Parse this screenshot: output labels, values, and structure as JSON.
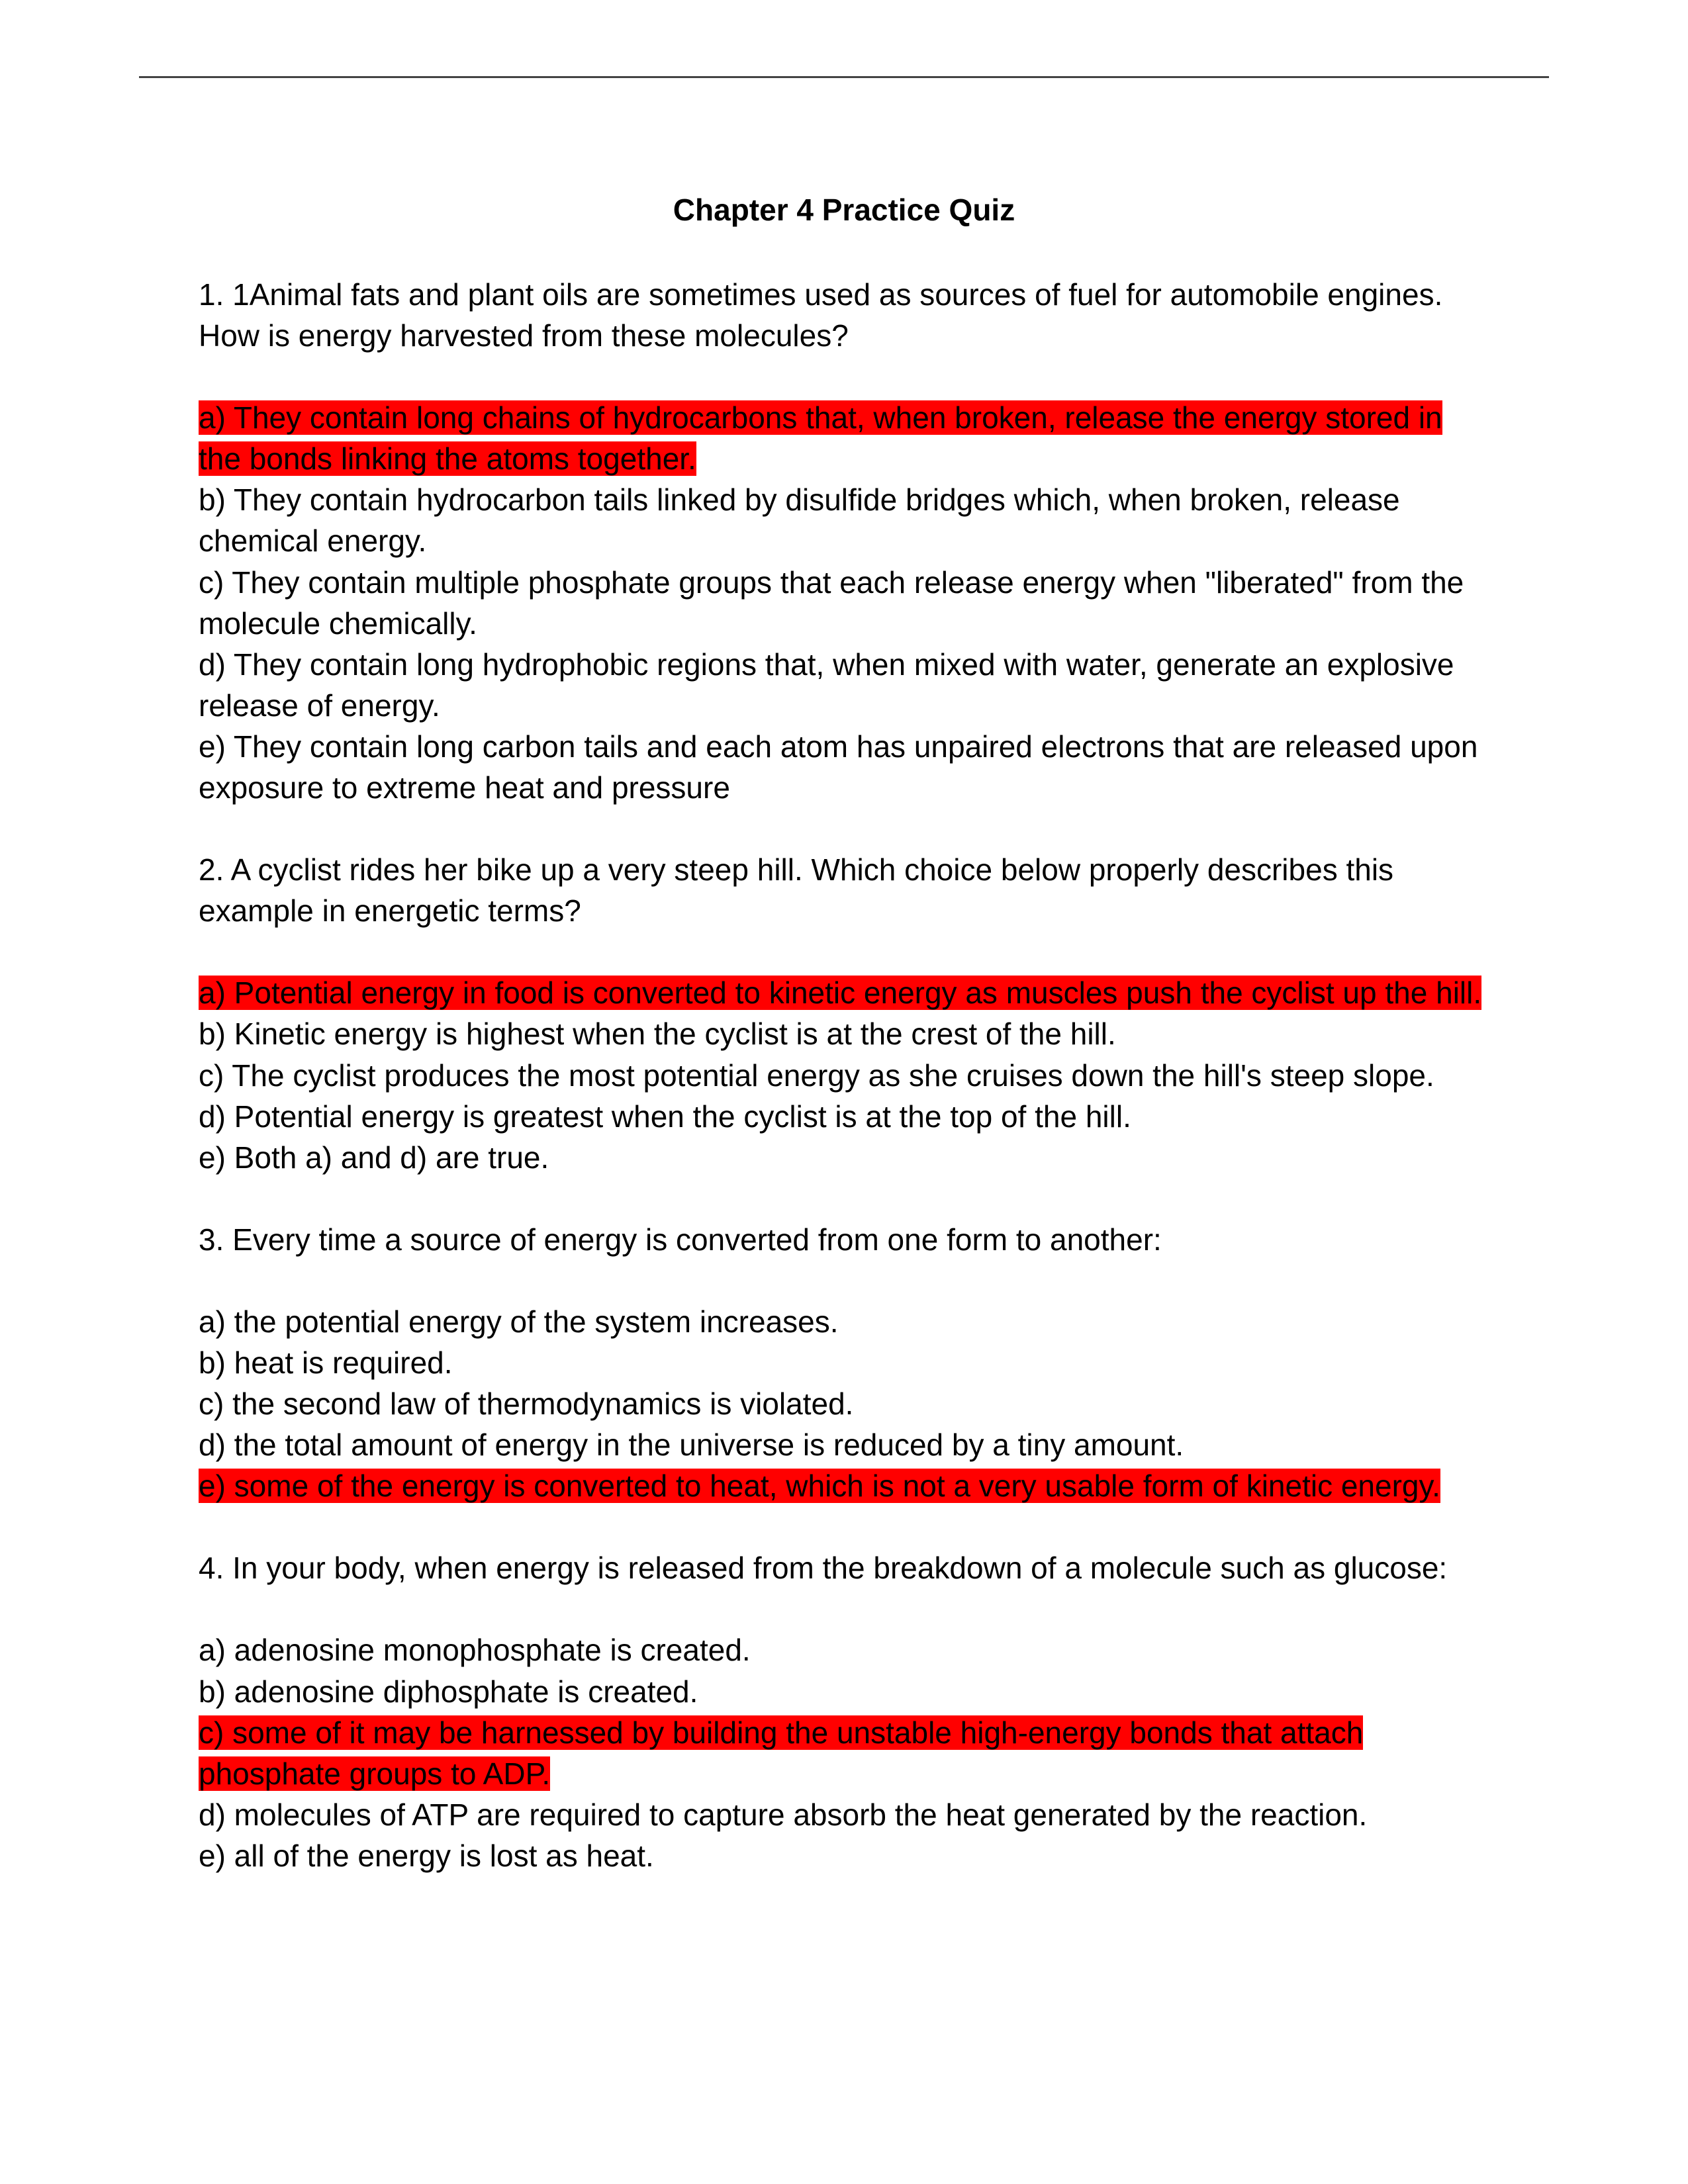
{
  "title": "Chapter 4 Practice Quiz",
  "q1": {
    "text": "1. 1Animal fats and plant oils are sometimes used as sources of fuel for automobile engines. How is energy harvested from these molecules?",
    "a": "a) They contain long chains of hydrocarbons that, when broken, release the energy stored in the bonds linking the atoms together.",
    "b": "b) They contain hydrocarbon tails linked by disulfide bridges which, when broken, release chemical energy.",
    "c": "c) They contain multiple phosphate groups that each release energy when \"liberated\" from the molecule chemically.",
    "d": "d) They contain long hydrophobic regions that, when mixed with water, generate an explosive release of energy.",
    "e": "e) They contain long carbon tails and each atom has unpaired electrons that are released upon exposure to extreme heat and pressure"
  },
  "q2": {
    "text": "2. A cyclist rides her bike up a very steep hill. Which choice below properly describes this example in energetic terms?",
    "a": "a) Potential energy in food is converted to kinetic energy as muscles push the cyclist up the hill.",
    "b": "b) Kinetic energy is highest when the cyclist is at the crest of the hill.",
    "c": "c) The cyclist produces the most potential energy as she cruises down the hill's steep slope.",
    "d": "d) Potential energy is greatest when the cyclist is at the top of the hill.",
    "e": "e) Both a) and d) are true."
  },
  "q3": {
    "text": "3. Every time a source of energy is converted from one form to another:",
    "a": "a)  the potential energy of the system increases.",
    "b": "b)  heat is required.",
    "c": "c)  the second law of thermodynamics is violated.",
    "d": "d)  the total amount of energy in the universe is reduced by a tiny amount.",
    "e": "e)  some of the energy is converted to heat, which is not a very usable form of kinetic energy."
  },
  "q4": {
    "text": "4. In your body, when energy is released from the breakdown of a molecule such as glucose:",
    "a": "a)  adenosine monophosphate is created.",
    "b": "b)  adenosine diphosphate is created.",
    "c": "c)  some of it may be harnessed by building the unstable high-energy bonds that attach phosphate groups to ADP.",
    "d": "d)  molecules of ATP are required to capture absorb the heat generated by the reaction.",
    "e": "e)  all of the energy is lost as heat."
  },
  "highlight_color": "#ff0000"
}
